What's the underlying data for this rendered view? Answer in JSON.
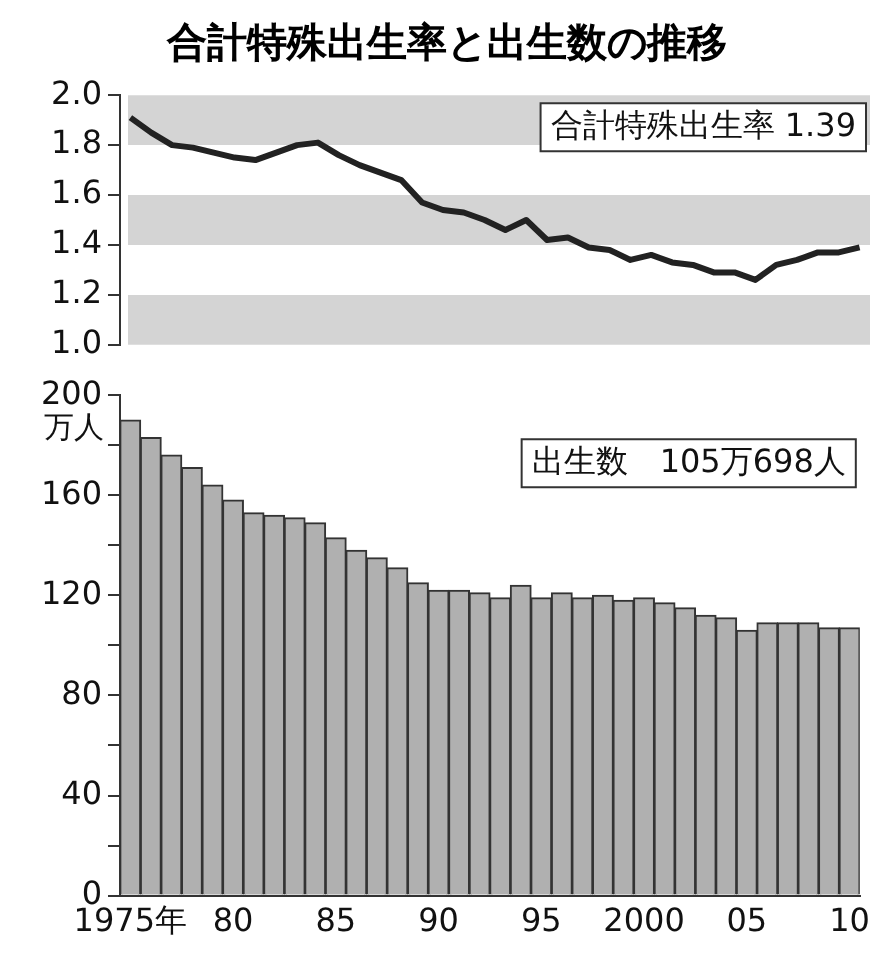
{
  "chart_data": [
    {
      "type": "line",
      "title": "合計特殊出生率と出生数の推移",
      "categories": [
        null,
        null,
        null,
        null,
        null,
        null,
        null,
        null,
        null,
        null,
        null,
        null,
        null,
        null,
        null,
        null,
        null,
        null,
        null,
        null,
        null,
        null,
        null,
        null,
        null,
        null,
        null,
        null,
        null,
        null,
        null,
        null,
        null,
        null,
        null,
        null
      ],
      "values": [
        1.91,
        1.85,
        1.8,
        1.79,
        1.77,
        1.75,
        1.74,
        1.77,
        1.8,
        1.81,
        1.76,
        1.72,
        1.69,
        1.66,
        1.57,
        1.54,
        1.53,
        1.5,
        1.46,
        1.5,
        1.42,
        1.43,
        1.39,
        1.38,
        1.34,
        1.36,
        1.33,
        1.32,
        1.29,
        1.29,
        1.26,
        1.32,
        1.34,
        1.37,
        1.37,
        1.39
      ],
      "color": "#222222",
      "ylim": [
        1.0,
        2.0
      ],
      "yticks": [
        {
          "value": 1.0,
          "label": "1.0"
        },
        1.2,
        1.4,
        1.6,
        1.8,
        {
          "value": 2.0,
          "label": "2.0"
        }
      ],
      "tick_labels": "y",
      "grid": false,
      "legend": false,
      "bands": [
        {
          "axis": "y",
          "from": 1.0,
          "to": 1.2,
          "color": "#d4d4d4"
        },
        {
          "axis": "y",
          "from": 1.4,
          "to": 1.6,
          "color": "#d4d4d4"
        },
        {
          "axis": "y",
          "from": 1.8,
          "to": 2.0,
          "color": "#d4d4d4"
        }
      ],
      "annotations": [
        "合計特殊出生率 1.39"
      ]
    },
    {
      "type": "bar",
      "ylabel": "万人",
      "categories": [
        "1975年",
        null,
        null,
        null,
        null,
        "80",
        null,
        null,
        null,
        null,
        "85",
        null,
        null,
        null,
        null,
        "90",
        null,
        null,
        null,
        null,
        "95",
        null,
        null,
        null,
        null,
        "2000",
        null,
        null,
        null,
        null,
        "05",
        null,
        null,
        null,
        null,
        "10"
      ],
      "values": [
        190,
        183,
        176,
        171,
        164,
        158,
        153,
        152,
        151,
        149,
        143,
        138,
        135,
        131,
        125,
        122,
        122,
        121,
        119,
        124,
        119,
        121,
        119,
        120,
        118,
        119,
        117,
        115,
        112,
        111,
        106,
        109,
        109,
        109,
        107,
        107
      ],
      "color": "#b0b0b0",
      "ylim": [
        0,
        200
      ],
      "yticks": [
        0,
        {
          "value": 20,
          "label": null
        },
        40,
        {
          "value": 60,
          "label": null
        },
        80,
        {
          "value": 100,
          "label": null
        },
        120,
        {
          "value": 140,
          "label": null
        },
        160,
        {
          "value": 180,
          "label": null
        },
        200
      ],
      "grid": false,
      "legend": false,
      "annotations": [
        "出生数　105万698人"
      ]
    }
  ]
}
